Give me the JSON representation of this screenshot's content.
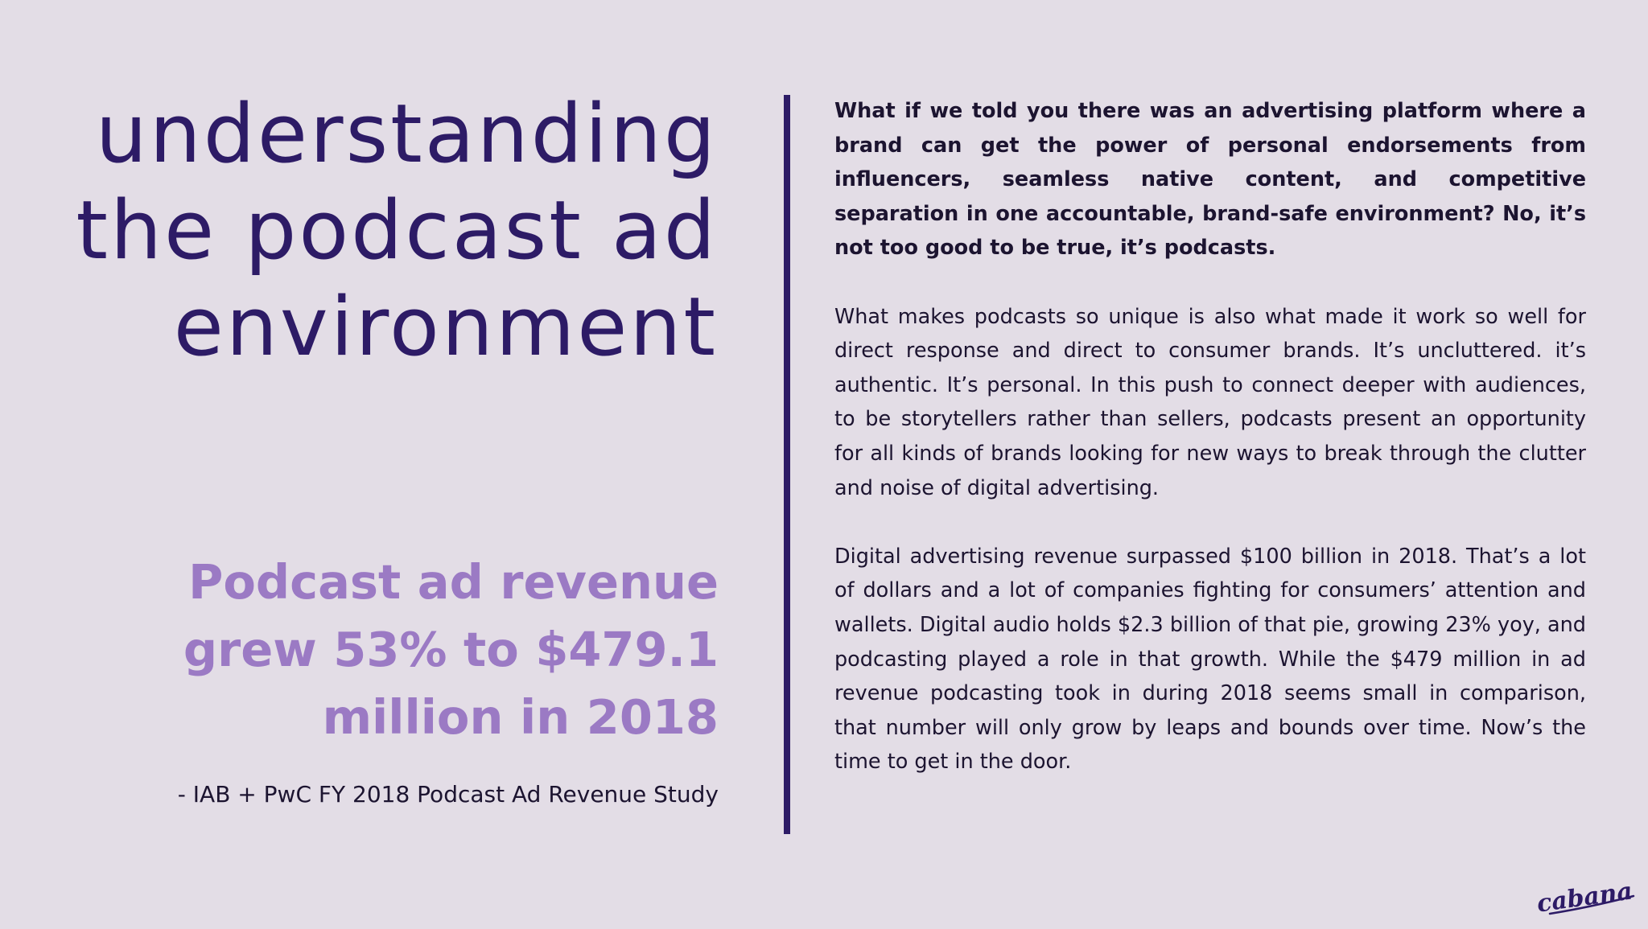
{
  "headline": {
    "line1": "understanding",
    "line2": "the podcast ad",
    "line3": "environment"
  },
  "stat": {
    "line1": "Podcast ad revenue",
    "line2": "grew 53% to $479.1",
    "line3": "million in 2018"
  },
  "source": "- IAB + PwC FY 2018 Podcast Ad Revenue Study",
  "paragraphs": {
    "p1": "What if we told you there was an advertising platform where a brand can get the power of personal endorsements from influencers, seamless native content, and competitive separation in one accountable, brand-safe environment? No, it’s not too good to be true, it’s podcasts.",
    "p2": "What makes podcasts so unique is also what made it work so well for direct response and direct to consumer brands. It’s uncluttered. it’s authentic. It’s personal. In this push to connect deeper with audiences, to be storytellers rather than sellers, podcasts present an opportunity for all kinds of brands looking for new ways to break through the clutter and noise of digital advertising.",
    "p3": "Digital advertising revenue surpassed $100 billion in 2018. That’s a lot of dollars and a lot of companies fighting for consumers’ attention and wallets. Digital audio holds $2.3 billion of that pie, growing 23% yoy, and podcasting played a role in that growth. While the $479 million in ad revenue podcasting took in during 2018 seems small in comparison, that number will only grow by leaps and bounds over time. Now’s the time to get in the door."
  },
  "logo": {
    "text": "cabana"
  },
  "colors": {
    "background": "#e3dde6",
    "headline": "#2d1b66",
    "stat": "#9b7ac4",
    "body_text": "#1c1430",
    "divider": "#2d1b66"
  }
}
